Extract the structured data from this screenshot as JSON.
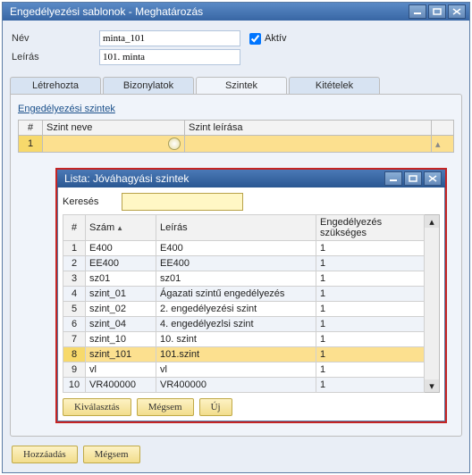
{
  "colors": {
    "accent": "#2e5c99",
    "selection": "#f7d96b",
    "field": "#fff7c5"
  },
  "main_window": {
    "title": "Engedélyezési sablonok - Meghatározás",
    "buttons": {
      "min": "–",
      "max": "□",
      "close": "×"
    },
    "form": {
      "name_label": "Név",
      "name_value": "minta_101",
      "active_label": "Aktív",
      "active_checked": true,
      "desc_label": "Leírás",
      "desc_value": "101. minta"
    },
    "tabs": {
      "items": [
        {
          "label": "Létrehozta"
        },
        {
          "label": "Bizonylatok"
        },
        {
          "label": "Szintek"
        },
        {
          "label": "Kitételek"
        }
      ],
      "active_index": 2
    },
    "levels_panel": {
      "section_title": "Engedélyezési szintek",
      "columns": {
        "num": "#",
        "name": "Szint neve",
        "desc": "Szint leírása"
      },
      "rows": [
        {
          "num": "1",
          "name": "",
          "desc": ""
        }
      ]
    },
    "footer": {
      "add": "Hozzáadás",
      "cancel": "Mégsem"
    }
  },
  "list_window": {
    "title": "Lista: Jóváhagyási szintek",
    "buttons": {
      "min": "–",
      "max": "□",
      "close": "×"
    },
    "search_label": "Keresés",
    "search_value": "",
    "columns": {
      "num": "#",
      "code": "Szám",
      "code_sort": "▲",
      "desc": "Leírás",
      "req": "Engedélyezés szükséges"
    },
    "rows": [
      {
        "num": "1",
        "code": "E400",
        "desc": "E400",
        "req": "1"
      },
      {
        "num": "2",
        "code": "EE400",
        "desc": "EE400",
        "req": "1"
      },
      {
        "num": "3",
        "code": "sz01",
        "desc": "sz01",
        "req": "1"
      },
      {
        "num": "4",
        "code": "szint_01",
        "desc": "Ágazati szintű engedélyezés",
        "req": "1"
      },
      {
        "num": "5",
        "code": "szint_02",
        "desc": "2. engedélyezési szint",
        "req": "1"
      },
      {
        "num": "6",
        "code": "szint_04",
        "desc": "4. engedélyezlsi szint",
        "req": "1"
      },
      {
        "num": "7",
        "code": "szint_10",
        "desc": "10. szint",
        "req": "1"
      },
      {
        "num": "8",
        "code": "szint_101",
        "desc": "101.szint",
        "req": "1"
      },
      {
        "num": "9",
        "code": "vl",
        "desc": "vl",
        "req": "1"
      },
      {
        "num": "10",
        "code": "VR400000",
        "desc": "VR400000",
        "req": "1"
      }
    ],
    "selected_index": 7,
    "footer": {
      "select": "Kiválasztás",
      "cancel": "Mégsem",
      "new": "Új"
    }
  }
}
